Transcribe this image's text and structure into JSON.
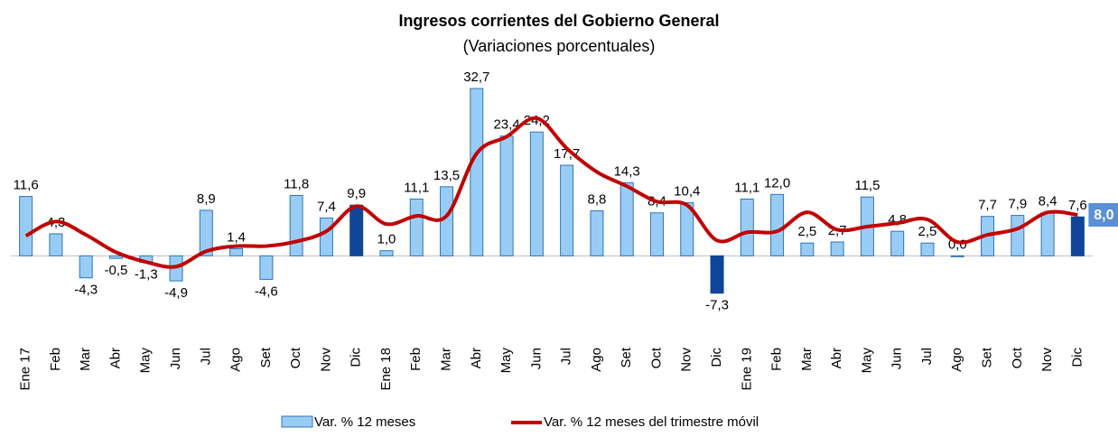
{
  "chart_data": {
    "type": "combo",
    "title": "Ingresos corrientes del Gobierno General",
    "subtitle": "(Variaciones porcentuales)",
    "categories": [
      "Ene 17",
      "Feb",
      "Mar",
      "Abr",
      "May",
      "Jun",
      "Jul",
      "Ago",
      "Set",
      "Oct",
      "Nov",
      "Dic",
      "Ene 18",
      "Feb",
      "Mar",
      "Abr",
      "May",
      "Jun",
      "Jul",
      "Ago",
      "Set",
      "Oct",
      "Nov",
      "Dic",
      "Ene 19",
      "Feb",
      "Mar",
      "Abr",
      "May",
      "Jun",
      "Jul",
      "Ago",
      "Set",
      "Oct",
      "Nov",
      "Dic"
    ],
    "ylim": [
      -13,
      35
    ],
    "series": [
      {
        "name": "Var. % 12 meses",
        "type": "bar",
        "color": "#99ccf5",
        "colors": [
          "#99ccf5",
          "#99ccf5",
          "#99ccf5",
          "#99ccf5",
          "#99ccf5",
          "#99ccf5",
          "#99ccf5",
          "#99ccf5",
          "#99ccf5",
          "#99ccf5",
          "#99ccf5",
          "#0f4699",
          "#99ccf5",
          "#99ccf5",
          "#99ccf5",
          "#99ccf5",
          "#99ccf5",
          "#99ccf5",
          "#99ccf5",
          "#99ccf5",
          "#99ccf5",
          "#99ccf5",
          "#99ccf5",
          "#0f4699",
          "#99ccf5",
          "#99ccf5",
          "#99ccf5",
          "#99ccf5",
          "#99ccf5",
          "#99ccf5",
          "#99ccf5",
          "#99ccf5",
          "#99ccf5",
          "#99ccf5",
          "#99ccf5",
          "#0f4699"
        ],
        "values": [
          11.6,
          4.3,
          -4.3,
          -0.5,
          -1.3,
          -4.9,
          8.9,
          1.4,
          -4.6,
          11.8,
          7.4,
          9.9,
          1.0,
          11.1,
          13.5,
          32.7,
          23.4,
          24.2,
          17.7,
          8.8,
          14.3,
          8.4,
          10.4,
          -7.3,
          11.1,
          12.0,
          2.5,
          2.7,
          11.5,
          4.8,
          2.5,
          0.0,
          7.7,
          7.9,
          8.4,
          7.6
        ],
        "value_labels": [
          "11,6",
          "4,3",
          "-4,3",
          "-0,5",
          "-1,3",
          "-4,9",
          "8,9",
          "1,4",
          "-4,6",
          "11,8",
          "7,4",
          "9,9",
          "1,0",
          "11,1",
          "13,5",
          "32,7",
          "23,4",
          "24,2",
          "17,7",
          "8,8",
          "14,3",
          "8,4",
          "10,4",
          "-7,3",
          "11,1",
          "12,0",
          "2,5",
          "2,7",
          "11,5",
          "4,8",
          "2,5",
          "0,0",
          "7,7",
          "7,9",
          "8,4",
          "7,6"
        ]
      },
      {
        "name": "Var. % 12 meses del trimestre móvil",
        "type": "line",
        "color": "#c00000",
        "values": [
          3.9,
          6.7,
          4.1,
          0.7,
          -1.2,
          -2.1,
          0.9,
          1.9,
          1.9,
          2.8,
          4.8,
          9.7,
          6.2,
          7.8,
          7.8,
          20.0,
          23.3,
          26.9,
          21.0,
          16.4,
          13.6,
          10.6,
          9.9,
          3.0,
          4.6,
          4.8,
          8.5,
          5.1,
          5.7,
          6.4,
          7.1,
          2.7,
          4.1,
          5.3,
          8.5,
          8.0
        ],
        "value_labels": [
          null,
          null,
          null,
          null,
          null,
          null,
          null,
          null,
          null,
          null,
          null,
          null,
          null,
          null,
          null,
          null,
          null,
          null,
          null,
          null,
          null,
          null,
          null,
          null,
          null,
          null,
          null,
          null,
          null,
          null,
          null,
          null,
          null,
          null,
          null,
          "8,0"
        ]
      }
    ]
  }
}
